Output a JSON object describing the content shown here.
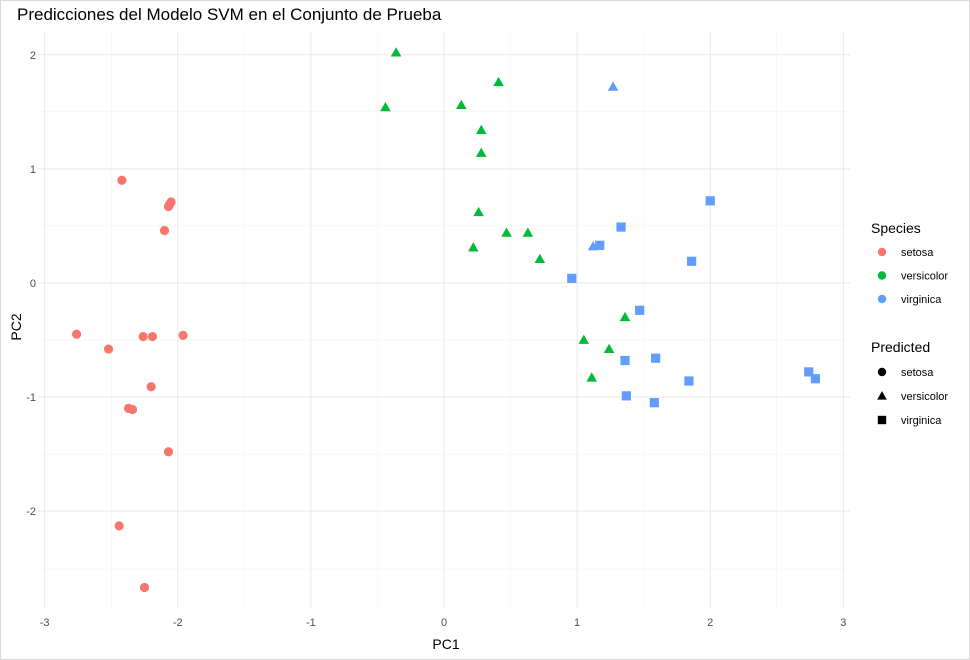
{
  "chart_data": {
    "type": "scatter",
    "title": "Predicciones del Modelo SVM en el Conjunto de Prueba",
    "xlabel": "PC1",
    "ylabel": "PC2",
    "xlim": [
      -3.05,
      3.05
    ],
    "ylim": [
      -2.85,
      2.2
    ],
    "x_ticks": [
      -3,
      -2,
      -1,
      0,
      1,
      2,
      3
    ],
    "y_ticks": [
      -2,
      -1,
      0,
      1,
      2
    ],
    "grid": true,
    "color_legend": {
      "title": "Species",
      "entries": [
        {
          "label": "setosa",
          "color": "#F8766D"
        },
        {
          "label": "versicolor",
          "color": "#00BA38"
        },
        {
          "label": "virginica",
          "color": "#619CFF"
        }
      ]
    },
    "shape_legend": {
      "title": "Predicted",
      "entries": [
        {
          "label": "setosa",
          "shape": "circle"
        },
        {
          "label": "versicolor",
          "shape": "triangle"
        },
        {
          "label": "virginica",
          "shape": "square"
        }
      ]
    },
    "points": [
      {
        "x": -2.42,
        "y": 0.9,
        "species": "setosa",
        "predicted": "setosa"
      },
      {
        "x": -2.05,
        "y": 0.71,
        "species": "setosa",
        "predicted": "setosa"
      },
      {
        "x": -2.06,
        "y": 0.69,
        "species": "setosa",
        "predicted": "setosa"
      },
      {
        "x": -2.07,
        "y": 0.67,
        "species": "setosa",
        "predicted": "setosa"
      },
      {
        "x": -2.1,
        "y": 0.46,
        "species": "setosa",
        "predicted": "setosa"
      },
      {
        "x": -2.76,
        "y": -0.45,
        "species": "setosa",
        "predicted": "setosa"
      },
      {
        "x": -2.52,
        "y": -0.58,
        "species": "setosa",
        "predicted": "setosa"
      },
      {
        "x": -2.26,
        "y": -0.47,
        "species": "setosa",
        "predicted": "setosa"
      },
      {
        "x": -2.19,
        "y": -0.47,
        "species": "setosa",
        "predicted": "setosa"
      },
      {
        "x": -1.96,
        "y": -0.46,
        "species": "setosa",
        "predicted": "setosa"
      },
      {
        "x": -2.2,
        "y": -0.91,
        "species": "setosa",
        "predicted": "setosa"
      },
      {
        "x": -2.37,
        "y": -1.1,
        "species": "setosa",
        "predicted": "setosa"
      },
      {
        "x": -2.34,
        "y": -1.11,
        "species": "setosa",
        "predicted": "setosa"
      },
      {
        "x": -2.07,
        "y": -1.48,
        "species": "setosa",
        "predicted": "setosa"
      },
      {
        "x": -2.44,
        "y": -2.13,
        "species": "setosa",
        "predicted": "setosa"
      },
      {
        "x": -2.25,
        "y": -2.67,
        "species": "setosa",
        "predicted": "setosa"
      },
      {
        "x": -0.36,
        "y": 2.02,
        "species": "versicolor",
        "predicted": "versicolor"
      },
      {
        "x": 0.41,
        "y": 1.76,
        "species": "versicolor",
        "predicted": "versicolor"
      },
      {
        "x": -0.44,
        "y": 1.54,
        "species": "versicolor",
        "predicted": "versicolor"
      },
      {
        "x": 0.13,
        "y": 1.56,
        "species": "versicolor",
        "predicted": "versicolor"
      },
      {
        "x": 0.28,
        "y": 1.34,
        "species": "versicolor",
        "predicted": "versicolor"
      },
      {
        "x": 0.28,
        "y": 1.14,
        "species": "versicolor",
        "predicted": "versicolor"
      },
      {
        "x": 0.26,
        "y": 0.62,
        "species": "versicolor",
        "predicted": "versicolor"
      },
      {
        "x": 0.47,
        "y": 0.44,
        "species": "versicolor",
        "predicted": "versicolor"
      },
      {
        "x": 0.63,
        "y": 0.44,
        "species": "versicolor",
        "predicted": "versicolor"
      },
      {
        "x": 0.22,
        "y": 0.31,
        "species": "versicolor",
        "predicted": "versicolor"
      },
      {
        "x": 0.72,
        "y": 0.21,
        "species": "versicolor",
        "predicted": "versicolor"
      },
      {
        "x": 1.36,
        "y": -0.3,
        "species": "versicolor",
        "predicted": "versicolor"
      },
      {
        "x": 1.05,
        "y": -0.5,
        "species": "versicolor",
        "predicted": "versicolor"
      },
      {
        "x": 1.24,
        "y": -0.58,
        "species": "versicolor",
        "predicted": "versicolor"
      },
      {
        "x": 1.11,
        "y": -0.83,
        "species": "versicolor",
        "predicted": "versicolor"
      },
      {
        "x": 1.27,
        "y": 1.72,
        "species": "virginica",
        "predicted": "versicolor"
      },
      {
        "x": 1.12,
        "y": 0.32,
        "species": "virginica",
        "predicted": "versicolor"
      },
      {
        "x": 2.0,
        "y": 0.72,
        "species": "virginica",
        "predicted": "virginica"
      },
      {
        "x": 1.33,
        "y": 0.49,
        "species": "virginica",
        "predicted": "virginica"
      },
      {
        "x": 1.17,
        "y": 0.33,
        "species": "virginica",
        "predicted": "virginica"
      },
      {
        "x": 1.86,
        "y": 0.19,
        "species": "virginica",
        "predicted": "virginica"
      },
      {
        "x": 0.96,
        "y": 0.04,
        "species": "virginica",
        "predicted": "virginica"
      },
      {
        "x": 1.47,
        "y": -0.24,
        "species": "virginica",
        "predicted": "virginica"
      },
      {
        "x": 1.59,
        "y": -0.66,
        "species": "virginica",
        "predicted": "virginica"
      },
      {
        "x": 1.36,
        "y": -0.68,
        "species": "virginica",
        "predicted": "virginica"
      },
      {
        "x": 1.84,
        "y": -0.86,
        "species": "virginica",
        "predicted": "virginica"
      },
      {
        "x": 1.37,
        "y": -0.99,
        "species": "virginica",
        "predicted": "virginica"
      },
      {
        "x": 1.58,
        "y": -1.05,
        "species": "virginica",
        "predicted": "virginica"
      },
      {
        "x": 2.74,
        "y": -0.78,
        "species": "virginica",
        "predicted": "virginica"
      },
      {
        "x": 2.79,
        "y": -0.84,
        "species": "virginica",
        "predicted": "virginica"
      }
    ]
  }
}
